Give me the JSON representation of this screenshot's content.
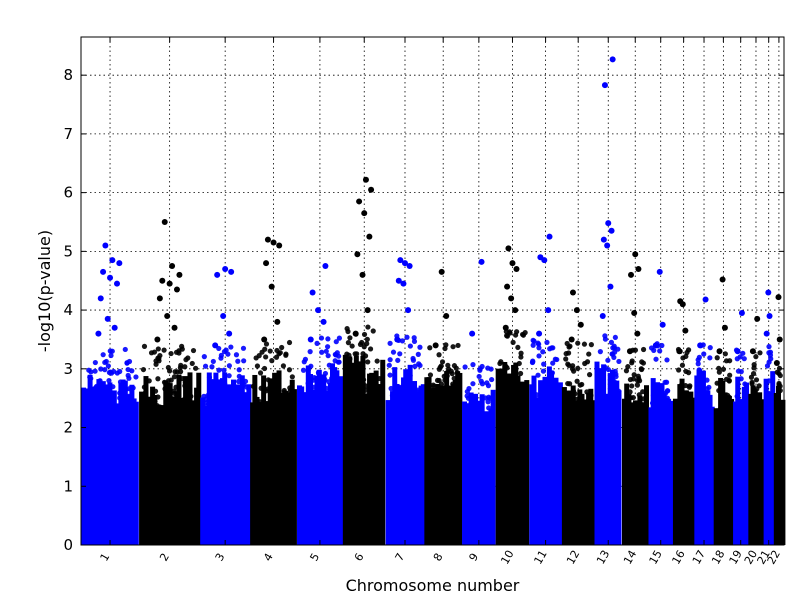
{
  "chart_data": {
    "type": "scatter",
    "subtype": "manhattan",
    "title": "",
    "xlabel": "Chromosome number",
    "ylabel": "-log10(p-value)",
    "ylim": [
      0,
      8.65
    ],
    "yticks": [
      "0",
      "1",
      "2",
      "3",
      "4",
      "5",
      "6",
      "7",
      "8"
    ],
    "grid": true,
    "legend": "none",
    "colors": {
      "even": "#0000ff",
      "odd": "#000000"
    },
    "chromosomes": [
      {
        "label": "1",
        "color": "blue",
        "bulk_max": 2.9,
        "top_points": [
          3.6,
          3.7,
          3.85,
          4.2,
          4.45,
          4.55,
          4.65,
          4.8,
          4.85,
          5.1
        ]
      },
      {
        "label": "2",
        "color": "black",
        "bulk_max": 2.95,
        "top_points": [
          3.5,
          3.7,
          3.9,
          4.2,
          4.35,
          4.45,
          4.5,
          4.6,
          4.75,
          5.5
        ]
      },
      {
        "label": "3",
        "color": "blue",
        "bulk_max": 2.95,
        "top_points": [
          3.4,
          3.6,
          3.9,
          4.6,
          4.65,
          4.7
        ]
      },
      {
        "label": "4",
        "color": "black",
        "bulk_max": 3.0,
        "top_points": [
          3.5,
          3.8,
          4.4,
          4.8,
          5.1,
          5.15,
          5.2
        ]
      },
      {
        "label": "5",
        "color": "blue",
        "bulk_max": 3.1,
        "top_points": [
          3.5,
          3.8,
          4.0,
          4.3,
          4.75
        ]
      },
      {
        "label": "6",
        "color": "black",
        "bulk_max": 3.3,
        "top_points": [
          3.6,
          4.0,
          4.6,
          4.95,
          5.25,
          5.65,
          5.85,
          6.05,
          6.22
        ]
      },
      {
        "label": "7",
        "color": "blue",
        "bulk_max": 3.1,
        "top_points": [
          3.5,
          4.0,
          4.45,
          4.5,
          4.75,
          4.8,
          4.85
        ]
      },
      {
        "label": "8",
        "color": "black",
        "bulk_max": 3.0,
        "top_points": [
          3.4,
          3.9,
          4.65
        ]
      },
      {
        "label": "9",
        "color": "blue",
        "bulk_max": 2.7,
        "top_points": [
          3.6,
          4.82
        ]
      },
      {
        "label": "10",
        "color": "black",
        "bulk_max": 3.2,
        "top_points": [
          3.7,
          4.0,
          4.2,
          4.4,
          4.7,
          4.8,
          5.05
        ]
      },
      {
        "label": "11",
        "color": "blue",
        "bulk_max": 3.1,
        "top_points": [
          3.6,
          4.0,
          4.85,
          4.9,
          5.25
        ]
      },
      {
        "label": "12",
        "color": "black",
        "bulk_max": 3.0,
        "top_points": [
          3.5,
          3.75,
          4.0,
          4.3
        ]
      },
      {
        "label": "13",
        "color": "blue",
        "bulk_max": 3.2,
        "top_points": [
          3.9,
          4.4,
          5.1,
          5.2,
          5.35,
          5.48,
          7.83,
          8.27
        ]
      },
      {
        "label": "14",
        "color": "black",
        "bulk_max": 2.9,
        "top_points": [
          3.3,
          3.6,
          3.95,
          4.6,
          4.7,
          4.95
        ]
      },
      {
        "label": "15",
        "color": "blue",
        "bulk_max": 3.0,
        "top_points": [
          3.4,
          3.75,
          4.65
        ]
      },
      {
        "label": "16",
        "color": "black",
        "bulk_max": 2.9,
        "top_points": [
          3.3,
          3.65,
          4.1,
          4.15
        ]
      },
      {
        "label": "17",
        "color": "blue",
        "bulk_max": 3.0,
        "top_points": [
          3.4,
          4.18
        ]
      },
      {
        "label": "18",
        "color": "black",
        "bulk_max": 2.9,
        "top_points": [
          3.3,
          3.7,
          4.52
        ]
      },
      {
        "label": "19",
        "color": "blue",
        "bulk_max": 2.9,
        "top_points": [
          3.3,
          3.95
        ]
      },
      {
        "label": "20",
        "color": "black",
        "bulk_max": 2.9,
        "top_points": [
          3.3,
          3.85
        ]
      },
      {
        "label": "21",
        "color": "blue",
        "bulk_max": 3.0,
        "top_points": [
          3.6,
          3.9,
          4.3
        ]
      },
      {
        "label": "22",
        "color": "black",
        "bulk_max": 2.8,
        "top_points": [
          3.1,
          3.5,
          4.22
        ]
      }
    ]
  }
}
